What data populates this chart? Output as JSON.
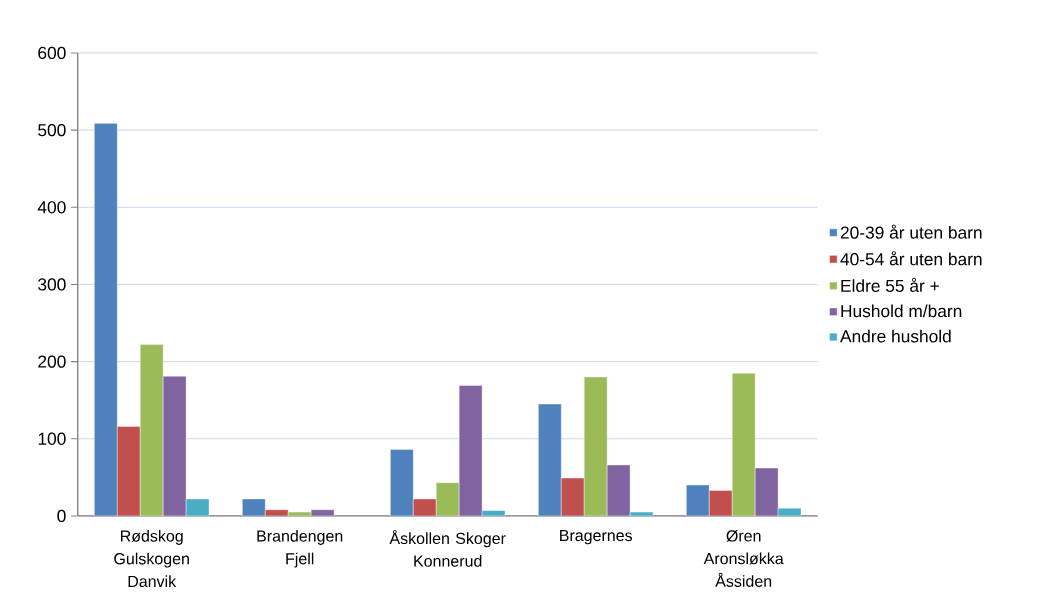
{
  "chart_data": {
    "type": "bar",
    "categories": [
      "Rødskog Gulskogen Danvik",
      "Brandengen Fjell",
      "Åskollen Skoger Konnerud",
      "Bragernes",
      "Øren Aronsløkka Åssiden"
    ],
    "series": [
      {
        "name": "20-39 år uten barn",
        "color": "#4f81bd",
        "values": [
          509,
          22,
          86,
          145,
          40
        ]
      },
      {
        "name": "40-54 år uten barn",
        "color": "#c0504d",
        "values": [
          116,
          8,
          22,
          49,
          33
        ]
      },
      {
        "name": "Eldre 55 år +",
        "color": "#9bbb59",
        "values": [
          222,
          5,
          43,
          180,
          185
        ]
      },
      {
        "name": "Hushold m/barn",
        "color": "#8064a2",
        "values": [
          181,
          8,
          169,
          66,
          62
        ]
      },
      {
        "name": "Andre hushold",
        "color": "#4bacc6",
        "values": [
          22,
          null,
          7,
          5,
          10
        ]
      }
    ],
    "ylim": [
      0,
      600
    ],
    "yticks": [
      0,
      100,
      200,
      300,
      400,
      500,
      600
    ],
    "grid": "y",
    "legend": "right"
  }
}
